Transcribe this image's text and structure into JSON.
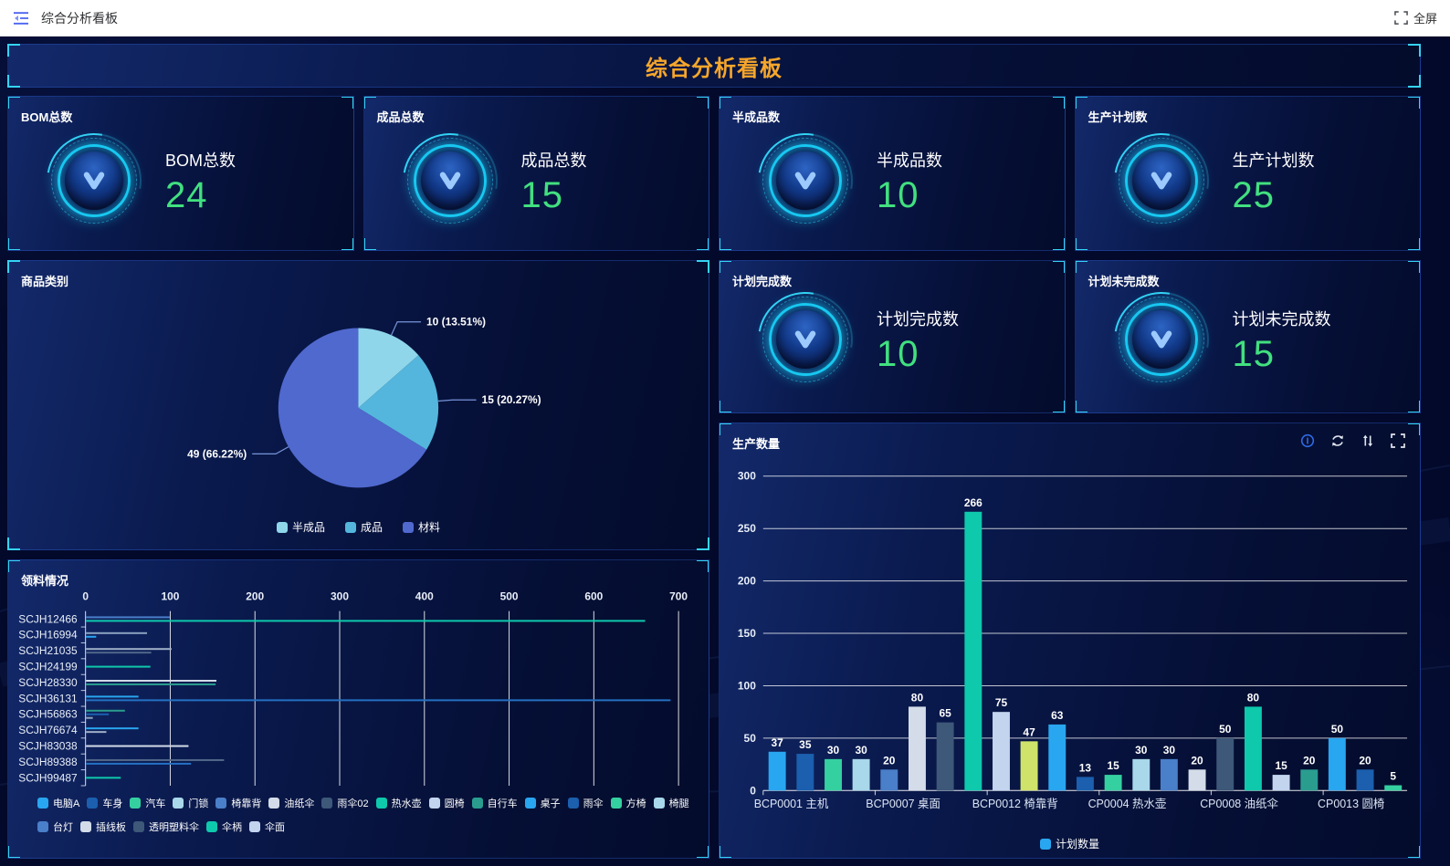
{
  "topbar": {
    "title": "综合分析看板",
    "fullscreen": {
      "label": "全屏"
    }
  },
  "banner": {
    "title": "综合分析看板"
  },
  "stat_cards": [
    {
      "title": "BOM总数",
      "label": "BOM总数",
      "value": "24"
    },
    {
      "title": "成品总数",
      "label": "成品总数",
      "value": "15"
    },
    {
      "title": "半成品数",
      "label": "半成品数",
      "value": "10"
    },
    {
      "title": "生产计划数",
      "label": "生产计划数",
      "value": "25"
    },
    {
      "title": "计划完成数",
      "label": "计划完成数",
      "value": "10"
    },
    {
      "title": "计划未完成数",
      "label": "计划未完成数",
      "value": "15"
    }
  ],
  "panels": {
    "pie": {
      "title": "商品类别"
    },
    "material": {
      "title": "领料情况"
    },
    "production": {
      "title": "生产数量",
      "toolbar": [
        "data-view-icon",
        "refresh-icon",
        "sort-icon",
        "fullscreen-icon"
      ]
    }
  },
  "colors": {
    "accent_cyan": "#35d3f5",
    "value_green": "#41e07f",
    "banner_orange": "#f6a62b"
  },
  "chart_data": [
    {
      "id": "pie",
      "type": "pie",
      "title": "商品类别",
      "legend_position": "bottom",
      "series": [
        {
          "name": "半成品",
          "value": 10,
          "percent": "13.51%",
          "label": "10 (13.51%)",
          "color": "#8fd6ea"
        },
        {
          "name": "成品",
          "value": 15,
          "percent": "20.27%",
          "label": "15 (20.27%)",
          "color": "#54b6dd"
        },
        {
          "name": "材料",
          "value": 49,
          "percent": "66.22%",
          "label": "49 (66.22%)",
          "color": "#5069cf"
        }
      ]
    },
    {
      "id": "material",
      "type": "bar-horizontal",
      "title": "领料情况",
      "xlim": [
        0,
        700
      ],
      "xticks": [
        0,
        100,
        200,
        300,
        400,
        500,
        600,
        700
      ],
      "rows": [
        {
          "label": "SCJH12466",
          "bars": [
            {
              "value": 99,
              "color": "#4a7fc9"
            },
            {
              "value": 660,
              "color": "#0ec9ac"
            }
          ]
        },
        {
          "label": "SCJH16994",
          "bars": [
            {
              "value": 72,
              "color": "#8aa2c0"
            },
            {
              "value": 12,
              "color": "#29a6f0"
            }
          ]
        },
        {
          "label": "SCJH21035",
          "bars": [
            {
              "value": 101,
              "color": "#9fb0c8"
            },
            {
              "value": 77,
              "color": "#51688a"
            }
          ]
        },
        {
          "label": "SCJH24199",
          "bars": [
            {
              "value": 76,
              "color": "#0ec9ac"
            }
          ]
        },
        {
          "label": "SCJH28330",
          "bars": [
            {
              "value": 154,
              "color": "#d3dce8"
            },
            {
              "value": 153,
              "color": "#2a9d8f"
            }
          ]
        },
        {
          "label": "SCJH36131",
          "bars": [
            {
              "value": 62,
              "color": "#29a6f0"
            },
            {
              "value": 690,
              "color": "#2470c2"
            }
          ]
        },
        {
          "label": "SCJH56863",
          "bars": [
            {
              "value": 46,
              "color": "#2a9d8f"
            },
            {
              "value": 27,
              "color": "#1b5fae"
            },
            {
              "value": 8,
              "color": "#8aa2c0"
            }
          ]
        },
        {
          "label": "SCJH76674",
          "bars": [
            {
              "value": 62,
              "color": "#29a6f0"
            },
            {
              "value": 24,
              "color": "#9fb0c8"
            }
          ]
        },
        {
          "label": "SCJH83038",
          "bars": [
            {
              "value": 121,
              "color": "#d3dce8"
            }
          ]
        },
        {
          "label": "SCJH89388",
          "bars": [
            {
              "value": 163,
              "color": "#51688a"
            },
            {
              "value": 124,
              "color": "#2470c2"
            }
          ]
        },
        {
          "label": "SCJH99487",
          "bars": [
            {
              "value": 41,
              "color": "#0ec9ac"
            }
          ]
        }
      ],
      "legend": [
        {
          "name": "电脑A",
          "color": "#29a6f0"
        },
        {
          "name": "车身",
          "color": "#1b5fae"
        },
        {
          "name": "汽车",
          "color": "#35d0a0"
        },
        {
          "name": "门锁",
          "color": "#a8d8ea"
        },
        {
          "name": "椅靠背",
          "color": "#4a7fc9"
        },
        {
          "name": "油纸伞",
          "color": "#d3dce8"
        },
        {
          "name": "雨伞02",
          "color": "#3d5878"
        },
        {
          "name": "热水壶",
          "color": "#0ec9ac"
        },
        {
          "name": "圆椅",
          "color": "#c3d4ef"
        },
        {
          "name": "自行车",
          "color": "#2a9d8f"
        },
        {
          "name": "桌子",
          "color": "#29a6f0"
        },
        {
          "name": "雨伞",
          "color": "#1b5fae"
        },
        {
          "name": "方椅",
          "color": "#35d0a0"
        },
        {
          "name": "椅腿",
          "color": "#a8d8ea"
        },
        {
          "name": "台灯",
          "color": "#4a7fc9"
        },
        {
          "name": "插线板",
          "color": "#d3dce8"
        },
        {
          "name": "透明塑料伞",
          "color": "#3d5878"
        },
        {
          "name": "伞柄",
          "color": "#0ec9ac"
        },
        {
          "name": "伞面",
          "color": "#c3d4ef"
        }
      ]
    },
    {
      "id": "production",
      "type": "bar",
      "title": "生产数量",
      "ylim": [
        0,
        300
      ],
      "yticks": [
        0,
        50,
        100,
        150,
        200,
        250,
        300
      ],
      "values": [
        37,
        35,
        30,
        30,
        20,
        80,
        65,
        266,
        75,
        47,
        63,
        13,
        15,
        30,
        30,
        20,
        50,
        80,
        15,
        20,
        50,
        20,
        5
      ],
      "colors": [
        "#29a6f0",
        "#1b5fae",
        "#35d0a0",
        "#a8d8ea",
        "#4a7fc9",
        "#d3dce8",
        "#3d5878",
        "#0ec9ac",
        "#c3d4ef",
        "#cfe36a",
        "#29a6f0",
        "#1b5fae",
        "#35d0a0",
        "#a8d8ea",
        "#4a7fc9",
        "#d3dce8",
        "#3d5878",
        "#0ec9ac",
        "#c3d4ef",
        "#2a9d8f",
        "#29a6f0",
        "#1b5fae",
        "#35d0a0"
      ],
      "x_labels": [
        {
          "index": 0,
          "label": "BCP0001 主机"
        },
        {
          "index": 4,
          "label": "BCP0007 桌面"
        },
        {
          "index": 8,
          "label": "BCP0012 椅靠背"
        },
        {
          "index": 12,
          "label": "CP0004 热水壶"
        },
        {
          "index": 16,
          "label": "CP0008 油纸伞"
        },
        {
          "index": 20,
          "label": "CP0013 圆椅"
        }
      ],
      "legend": [
        {
          "name": "计划数量",
          "color": "#29a6f0"
        }
      ]
    }
  ]
}
